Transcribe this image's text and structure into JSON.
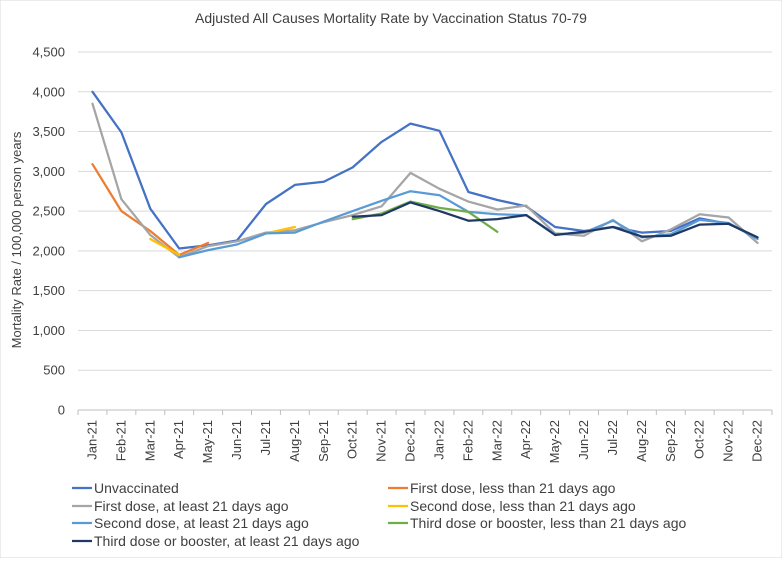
{
  "chart_data": {
    "type": "line",
    "title": "Adjusted All Causes Mortality Rate by Vaccination Status 70-79",
    "xlabel": "",
    "ylabel": "Mortality Rate / 100,000 person years",
    "ylim": [
      0,
      4500
    ],
    "yticks": [
      0,
      500,
      1000,
      1500,
      2000,
      2500,
      3000,
      3500,
      4000,
      4500
    ],
    "ytick_labels": [
      "0",
      "500",
      "1,000",
      "1,500",
      "2,000",
      "2,500",
      "3,000",
      "3,500",
      "4,000",
      "4,500"
    ],
    "grid": true,
    "legend_position": "bottom",
    "categories": [
      "Jan-21",
      "Feb-21",
      "Mar-21",
      "Apr-21",
      "May-21",
      "Jun-21",
      "Jul-21",
      "Aug-21",
      "Sep-21",
      "Oct-21",
      "Nov-21",
      "Dec-21",
      "Jan-22",
      "Feb-22",
      "Mar-22",
      "Apr-22",
      "May-22",
      "Jun-22",
      "Jul-22",
      "Aug-22",
      "Sep-22",
      "Oct-22",
      "Nov-22",
      "Dec-22"
    ],
    "series": [
      {
        "name": "Unvaccinated",
        "color": "#4472C4",
        "values": [
          4000,
          3490,
          2530,
          2030,
          2070,
          2130,
          2590,
          2830,
          2870,
          3050,
          3370,
          3600,
          3510,
          2740,
          2640,
          2560,
          2300,
          2250,
          2300,
          2230,
          2250,
          2410,
          2340,
          2170
        ]
      },
      {
        "name": "First dose, less than 21 days ago",
        "color": "#ED7D31",
        "values": [
          3090,
          2500,
          2250,
          1950,
          2100,
          null,
          null,
          null,
          null,
          null,
          null,
          null,
          null,
          null,
          null,
          null,
          null,
          null,
          null,
          null,
          null,
          null,
          null,
          null
        ]
      },
      {
        "name": "First dose, at least 21 days ago",
        "color": "#A5A5A5",
        "values": [
          3850,
          2650,
          2200,
          1920,
          2060,
          2120,
          2230,
          2260,
          2360,
          2450,
          2560,
          2980,
          2780,
          2620,
          2520,
          2570,
          2220,
          2190,
          2390,
          2120,
          2270,
          2460,
          2420,
          2100
        ]
      },
      {
        "name": "Second dose, less than 21 days ago",
        "color": "#FFC000",
        "values": [
          null,
          null,
          2150,
          1950,
          null,
          null,
          2220,
          2300,
          null,
          null,
          null,
          null,
          null,
          null,
          null,
          null,
          null,
          null,
          null,
          null,
          null,
          null,
          null,
          null
        ]
      },
      {
        "name": "Second dose, at least 21 days ago",
        "color": "#5B9BD5",
        "values": [
          null,
          null,
          null,
          1920,
          2010,
          2080,
          2220,
          2230,
          2370,
          2500,
          2630,
          2750,
          2700,
          2490,
          2460,
          2450,
          2210,
          2230,
          2380,
          2170,
          2210,
          2390,
          2350,
          2150
        ]
      },
      {
        "name": "Third dose or booster, less than 21 days ago",
        "color": "#70AD47",
        "values": [
          null,
          null,
          null,
          null,
          null,
          null,
          null,
          null,
          null,
          2400,
          2470,
          2620,
          2540,
          2490,
          2240,
          null,
          null,
          null,
          null,
          null,
          null,
          null,
          null,
          null
        ]
      },
      {
        "name": "Third dose or booster, at least 21 days ago",
        "color": "#203864",
        "values": [
          null,
          null,
          null,
          null,
          null,
          null,
          null,
          null,
          null,
          2430,
          2450,
          2610,
          2500,
          2380,
          2400,
          2450,
          2200,
          2240,
          2300,
          2180,
          2190,
          2330,
          2340,
          2170
        ]
      }
    ]
  }
}
